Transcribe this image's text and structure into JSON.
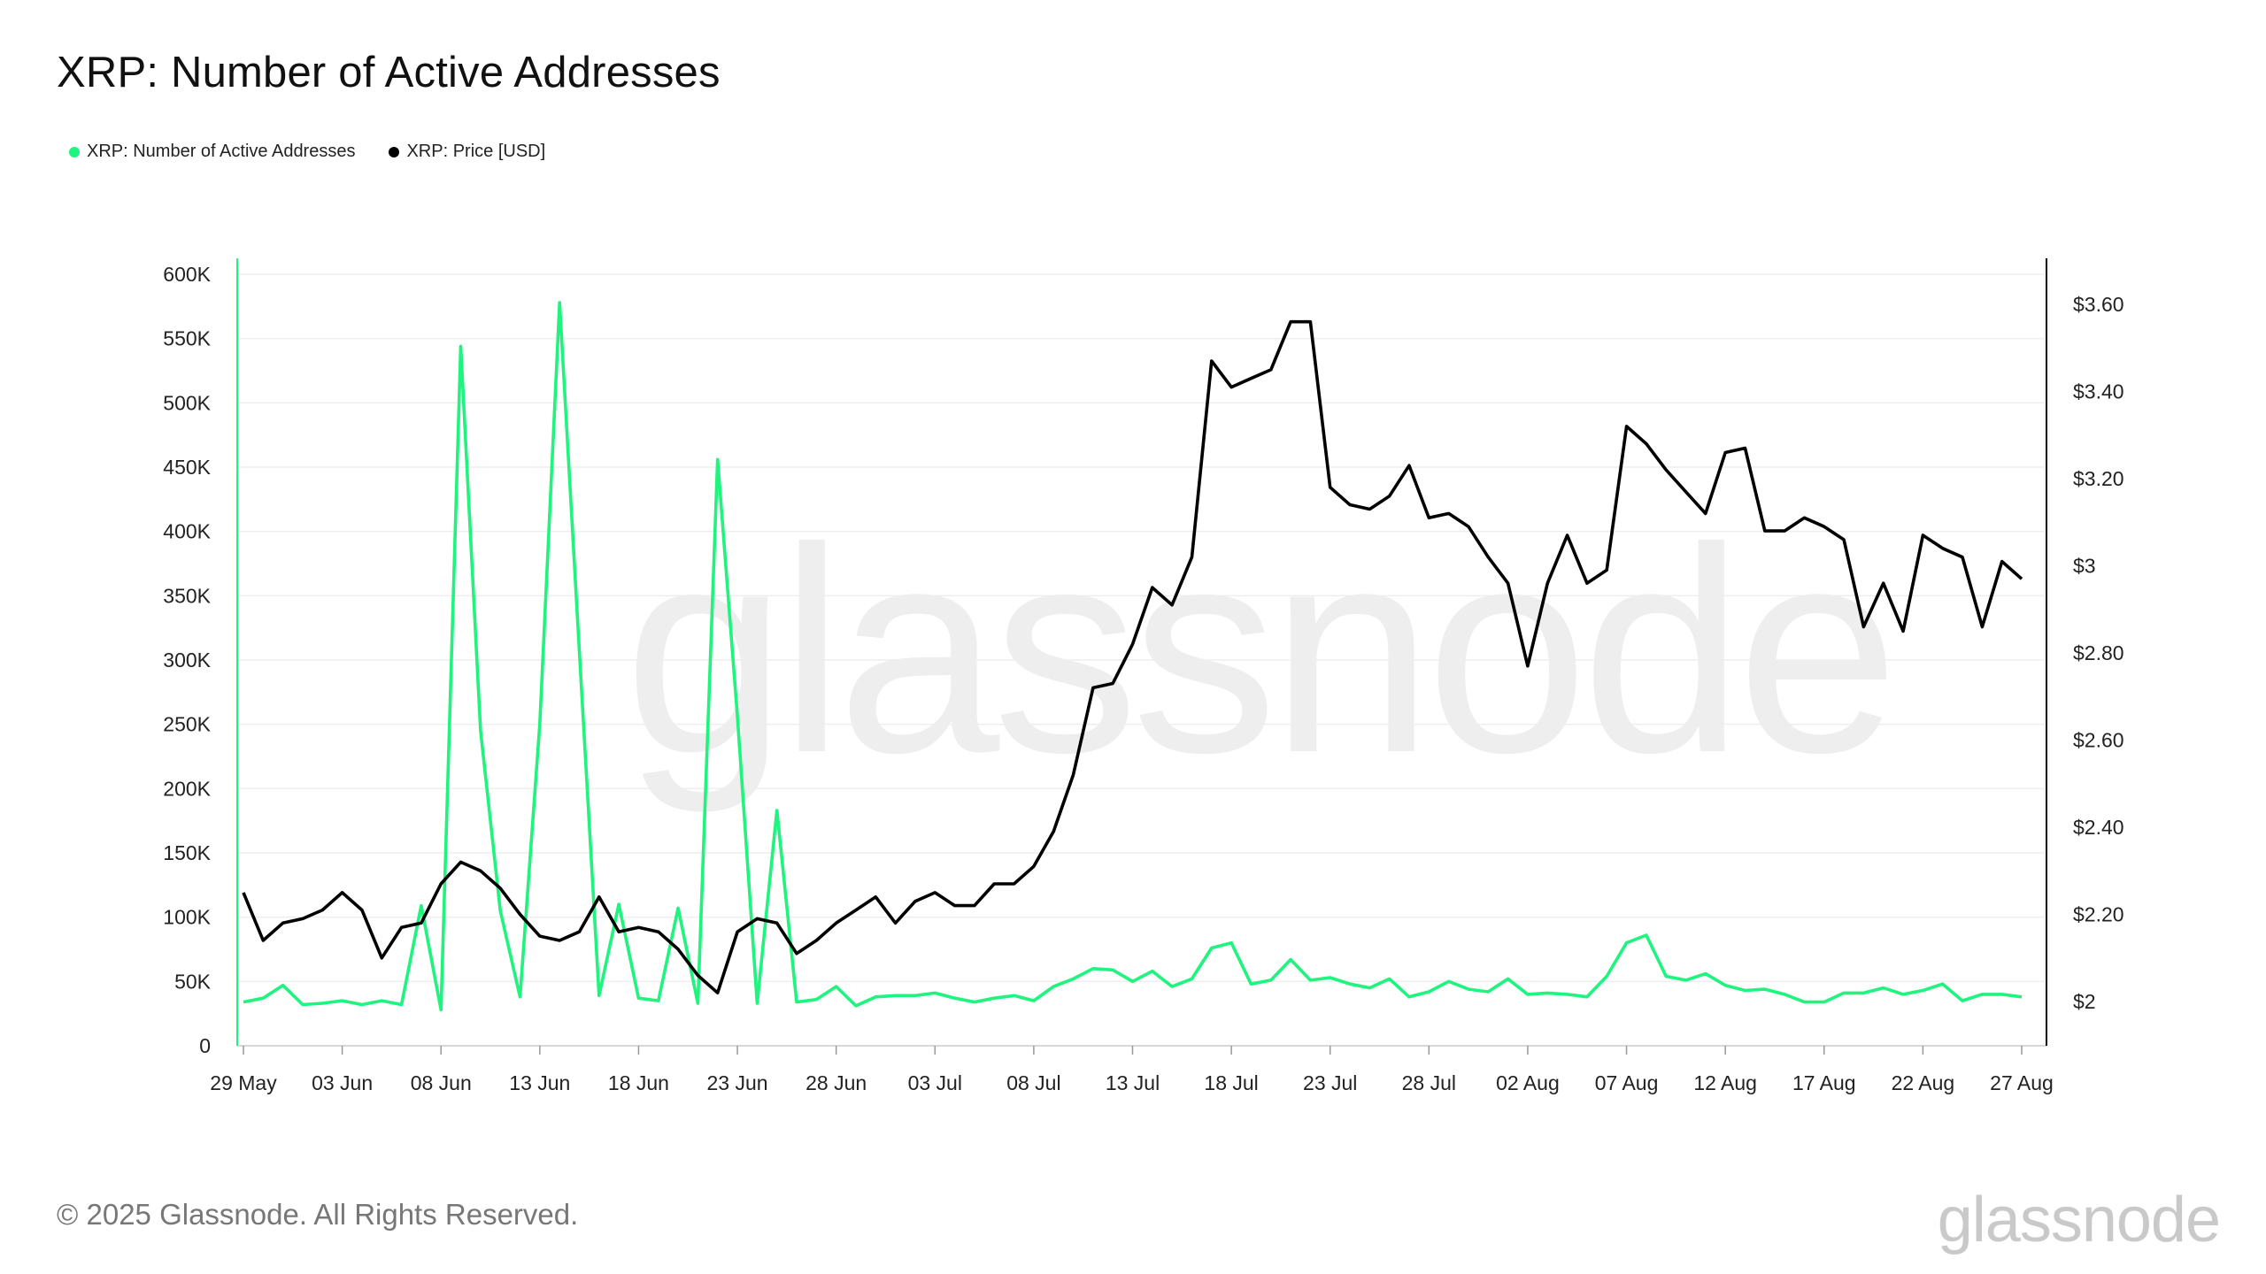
{
  "title": "XRP: Number of Active Addresses",
  "footer": "© 2025 Glassnode. All Rights Reserved.",
  "brand": "glassnode",
  "watermark": "glassnode",
  "colors": {
    "addresses": "#1ef47e",
    "price": "#000000",
    "grid": "#eeeeee",
    "axis": "#000000"
  },
  "legend": [
    {
      "label": "XRP: Number of Active Addresses",
      "color": "#1ef47e"
    },
    {
      "label": "XRP: Price [USD]",
      "color": "#000000"
    }
  ],
  "chart_data": {
    "type": "line",
    "x_start": "2025-05-29",
    "x_end": "2025-08-27",
    "x_ticks": [
      "29 May",
      "03 Jun",
      "08 Jun",
      "13 Jun",
      "18 Jun",
      "23 Jun",
      "28 Jun",
      "03 Jul",
      "08 Jul",
      "13 Jul",
      "18 Jul",
      "23 Jul",
      "28 Jul",
      "02 Aug",
      "07 Aug",
      "12 Aug",
      "17 Aug",
      "22 Aug",
      "27 Aug"
    ],
    "y_left": {
      "min": 0,
      "max": 600000,
      "ticks": [
        "0",
        "50K",
        "100K",
        "150K",
        "200K",
        "250K",
        "300K",
        "350K",
        "400K",
        "450K",
        "500K",
        "550K",
        "600K"
      ]
    },
    "y_right": {
      "min": 2.0,
      "max": 3.6,
      "ticks": [
        "$2",
        "$2.20",
        "$2.40",
        "$2.60",
        "$2.80",
        "$3",
        "$3.20",
        "$3.40",
        "$3.60"
      ]
    },
    "grid": true,
    "legend_position": "top-left",
    "series": [
      {
        "name": "XRP: Number of Active Addresses",
        "axis": "left",
        "values": [
          34000,
          37000,
          47000,
          32000,
          33000,
          35000,
          32000,
          35000,
          32000,
          109000,
          28000,
          544000,
          245000,
          105000,
          38000,
          250000,
          578000,
          307000,
          39000,
          110000,
          37000,
          35000,
          107000,
          33000,
          456000,
          256000,
          33000,
          183000,
          34000,
          36000,
          46000,
          31000,
          38000,
          39000,
          39000,
          41000,
          37000,
          34000,
          37000,
          39000,
          35000,
          46000,
          52000,
          60000,
          59000,
          50000,
          58000,
          46000,
          52000,
          76000,
          80000,
          48000,
          51000,
          67000,
          51000,
          53000,
          48000,
          45000,
          52000,
          38000,
          42000,
          50000,
          44000,
          42000,
          52000,
          40000,
          41000,
          40000,
          38000,
          54000,
          80000,
          86000,
          54000,
          51000,
          56000,
          47000,
          43000,
          44000,
          40000,
          34000,
          34000,
          41000,
          41000,
          45000,
          40000,
          43000,
          48000,
          35000,
          40000,
          40000,
          38000
        ]
      },
      {
        "name": "XRP: Price [USD]",
        "axis": "right",
        "values": [
          2.25,
          2.14,
          2.18,
          2.19,
          2.21,
          2.25,
          2.21,
          2.1,
          2.17,
          2.18,
          2.27,
          2.32,
          2.3,
          2.26,
          2.2,
          2.15,
          2.14,
          2.16,
          2.24,
          2.16,
          2.17,
          2.16,
          2.12,
          2.06,
          2.02,
          2.16,
          2.19,
          2.18,
          2.11,
          2.14,
          2.18,
          2.21,
          2.24,
          2.18,
          2.23,
          2.25,
          2.22,
          2.22,
          2.27,
          2.27,
          2.31,
          2.39,
          2.52,
          2.72,
          2.73,
          2.82,
          2.95,
          2.91,
          3.02,
          3.47,
          3.41,
          3.43,
          3.45,
          3.56,
          3.56,
          3.18,
          3.14,
          3.13,
          3.16,
          3.23,
          3.11,
          3.12,
          3.09,
          3.02,
          2.96,
          2.77,
          2.96,
          3.07,
          2.96,
          2.99,
          3.32,
          3.28,
          3.22,
          3.17,
          3.12,
          3.26,
          3.27,
          3.08,
          3.08,
          3.11,
          3.09,
          3.06,
          2.86,
          2.96,
          2.85,
          3.07,
          3.04,
          3.02,
          2.86,
          3.01,
          2.97
        ]
      }
    ]
  }
}
